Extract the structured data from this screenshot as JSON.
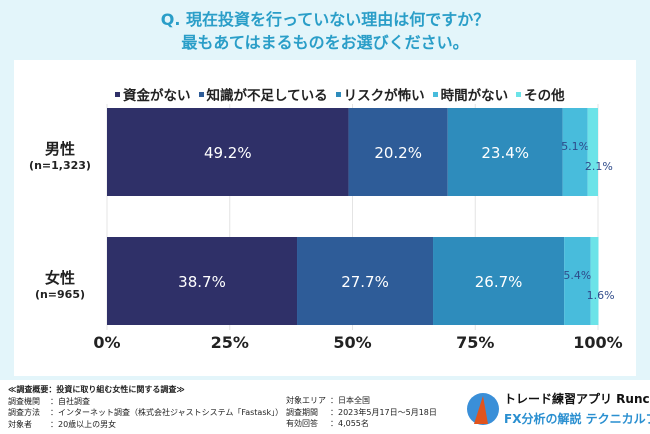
{
  "title": [
    "Q. 現在投資を行っていない理由は何ですか？",
    "最もあてはまるものをお選びください。"
  ],
  "chart_data": {
    "type": "bar",
    "orientation": "horizontal",
    "stacked": true,
    "categories": [
      {
        "name": "男性",
        "n": "(n=1,323)"
      },
      {
        "name": "女性",
        "n": "(n=965)"
      }
    ],
    "series": [
      {
        "name": "資金がない",
        "color": "#2f3068",
        "values": [
          49.2,
          38.7
        ]
      },
      {
        "name": "知識が不足している",
        "color": "#2e5c98",
        "values": [
          20.2,
          27.7
        ]
      },
      {
        "name": "リスクが怖い",
        "color": "#2e8cbc",
        "values": [
          23.4,
          26.7
        ]
      },
      {
        "name": "時間がない",
        "color": "#48bcdc",
        "values": [
          5.1,
          5.4
        ]
      },
      {
        "name": "その他",
        "color": "#6ce3e8",
        "values": [
          2.1,
          1.6
        ]
      }
    ],
    "xlim": [
      0,
      100
    ],
    "xticks": [
      "0%",
      "25%",
      "50%",
      "75%",
      "100%"
    ],
    "legend": "top",
    "grid": true
  },
  "footer": {
    "heading": "≪調査概要：投資に取り組む女性に関する調査≫",
    "rows": [
      [
        "調査機関",
        "：自社調査"
      ],
      [
        "調査方法",
        "：インターネット調査（株式会社ジャストシステム「Fastask」）"
      ],
      [
        "対象者",
        "：20歳以上の男女"
      ]
    ],
    "rows2": [
      [
        "対象エリア",
        "：日本全国"
      ],
      [
        "調査期間",
        "：2023年5月17日〜5月18日"
      ],
      [
        "有効回答",
        "：4,055名"
      ]
    ]
  },
  "logo": {
    "line1": "トレード練習アプリ Runcha",
    "line2": "FX分析の解説 テクニカルブック"
  }
}
